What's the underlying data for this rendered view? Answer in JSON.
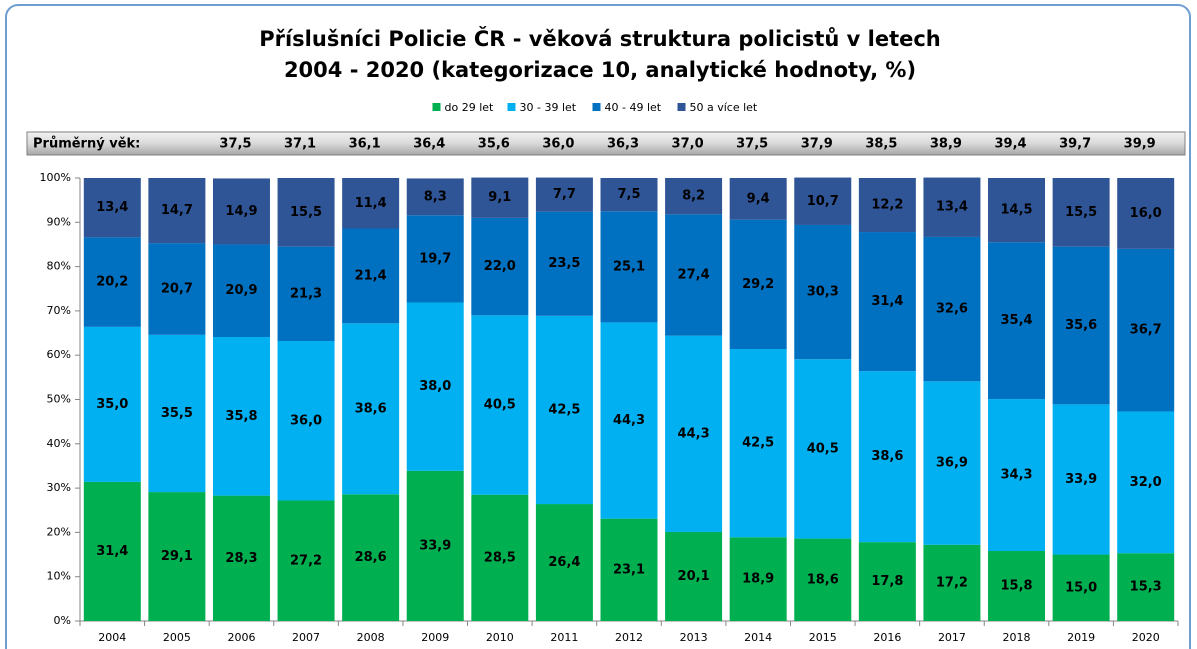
{
  "chart_data": {
    "type": "stacked_bar",
    "title": [
      "Příslušníci Policie ČR - věková struktura policistů  v letech",
      "2004 - 2020 (kategorizace 10, analytické hodnoty, %)"
    ],
    "categories": [
      "2004",
      "2005",
      "2006",
      "2007",
      "2008",
      "2009",
      "2010",
      "2011",
      "2012",
      "2013",
      "2014",
      "2015",
      "2016",
      "2017",
      "2018",
      "2019",
      "2020"
    ],
    "series": [
      {
        "name": "do 29 let",
        "color": "#00b050",
        "values": [
          31.4,
          29.1,
          28.3,
          27.2,
          28.6,
          33.9,
          28.5,
          26.4,
          23.1,
          20.1,
          18.9,
          18.6,
          17.8,
          17.2,
          15.8,
          15.0,
          15.3
        ],
        "value_labels": [
          "31,4",
          "29,1",
          "28,3",
          "27,2",
          "28,6",
          "33,9",
          "28,5",
          "26,4",
          "23,1",
          "20,1",
          "18,9",
          "18,6",
          "17,8",
          "17,2",
          "15,8",
          "15,0",
          "15,3"
        ]
      },
      {
        "name": "30 - 39 let",
        "color": "#00b0f0",
        "values": [
          35.0,
          35.5,
          35.8,
          36.0,
          38.6,
          38.0,
          40.5,
          42.5,
          44.3,
          44.3,
          42.5,
          40.5,
          38.6,
          36.9,
          34.3,
          33.9,
          32.0
        ],
        "value_labels": [
          "35,0",
          "35,5",
          "35,8",
          "36,0",
          "38,6",
          "38,0",
          "40,5",
          "42,5",
          "44,3",
          "44,3",
          "42,5",
          "40,5",
          "38,6",
          "36,9",
          "34,3",
          "33,9",
          "32,0"
        ]
      },
      {
        "name": "40 - 49 let",
        "color": "#0070c0",
        "values": [
          20.2,
          20.7,
          20.9,
          21.3,
          21.4,
          19.7,
          22.0,
          23.5,
          25.1,
          27.4,
          29.2,
          30.3,
          31.4,
          32.6,
          35.4,
          35.6,
          36.7
        ],
        "value_labels": [
          "20,2",
          "20,7",
          "20,9",
          "21,3",
          "21,4",
          "19,7",
          "22,0",
          "23,5",
          "25,1",
          "27,4",
          "29,2",
          "30,3",
          "31,4",
          "32,6",
          "35,4",
          "35,6",
          "36,7"
        ]
      },
      {
        "name": "50 a více let",
        "color": "#2f5597",
        "values": [
          13.4,
          14.7,
          14.9,
          15.5,
          11.4,
          8.3,
          9.1,
          7.7,
          7.5,
          8.2,
          9.4,
          10.7,
          12.2,
          13.4,
          14.5,
          15.5,
          16.0
        ],
        "value_labels": [
          "13,4",
          "14,7",
          "14,9",
          "15,5",
          "11,4",
          "8,3",
          "9,1",
          "7,7",
          "7,5",
          "8,2",
          "9,4",
          "10,7",
          "12,2",
          "13,4",
          "14,5",
          "15,5",
          "16,0"
        ]
      }
    ],
    "average_age": {
      "label": "Průměrný věk:",
      "values": [
        null,
        null,
        37.5,
        37.1,
        36.1,
        36.4,
        35.6,
        36.0,
        36.3,
        37.0,
        37.5,
        37.9,
        38.5,
        38.9,
        39.4,
        39.7,
        39.9
      ],
      "value_labels": [
        null,
        null,
        "37,5",
        "37,1",
        "36,1",
        "36,4",
        "35,6",
        "36,0",
        "36,3",
        "37,0",
        "37,5",
        "37,9",
        "38,5",
        "38,9",
        "39,4",
        "39,7",
        "39,9"
      ]
    },
    "ylim": [
      0,
      100
    ],
    "yticks": [
      {
        "value": 0,
        "label": "0%"
      },
      {
        "value": 10,
        "label": "10%"
      },
      {
        "value": 20,
        "label": "20%"
      },
      {
        "value": 30,
        "label": "30%"
      },
      {
        "value": 40,
        "label": "40%"
      },
      {
        "value": 50,
        "label": "50%"
      },
      {
        "value": 60,
        "label": "60%"
      },
      {
        "value": 70,
        "label": "70%"
      },
      {
        "value": 80,
        "label": "80%"
      },
      {
        "value": 90,
        "label": "90%"
      },
      {
        "value": 100,
        "label": "100%"
      }
    ],
    "legend": "top"
  }
}
